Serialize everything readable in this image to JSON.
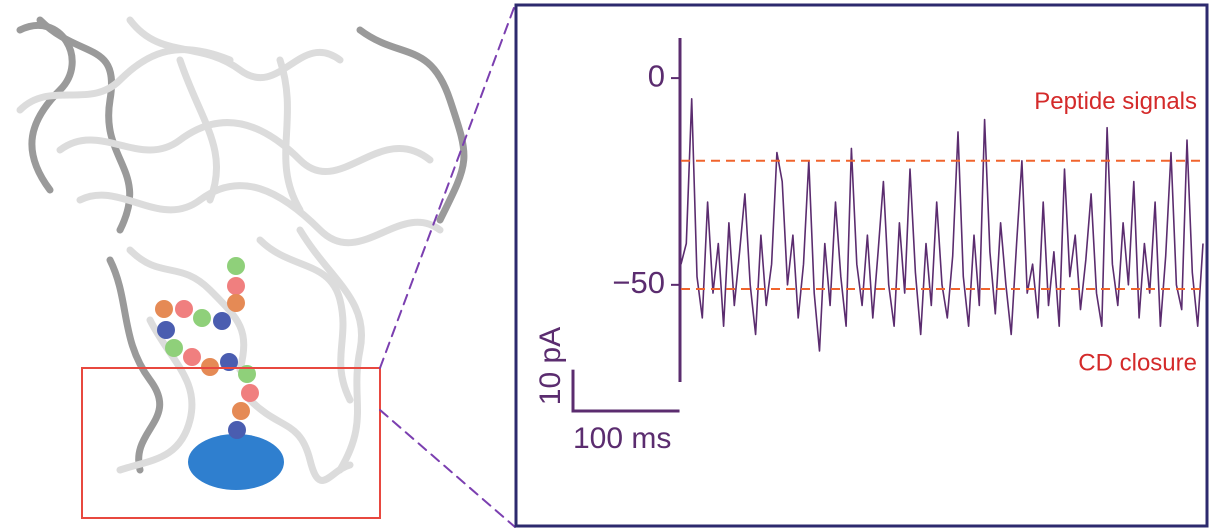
{
  "chart_data": {
    "type": "line",
    "color": "#5b2c6f",
    "x": [
      0,
      5,
      10,
      15,
      20,
      25,
      30,
      35,
      40,
      45,
      50,
      55,
      60,
      65,
      70,
      75,
      80,
      85,
      90,
      95,
      100,
      105,
      110,
      115,
      120,
      125,
      130,
      135,
      140,
      145,
      150,
      155,
      160,
      165,
      170,
      175,
      180,
      185,
      190,
      195,
      200,
      205,
      210,
      215,
      220,
      225,
      230,
      235,
      240,
      245,
      250,
      255,
      260,
      265,
      270,
      275,
      280,
      285,
      290,
      295,
      300,
      305,
      310,
      315,
      320,
      325,
      330,
      335,
      340,
      345,
      350,
      355,
      360,
      365,
      370,
      375,
      380,
      385,
      390,
      395,
      400,
      405,
      410,
      415,
      420,
      425,
      430,
      435,
      440,
      445,
      450,
      455,
      460,
      465,
      470,
      475,
      480,
      485,
      490
    ],
    "values": [
      -45,
      -40,
      -5,
      -48,
      -58,
      -30,
      -52,
      -40,
      -60,
      -35,
      -55,
      -42,
      -28,
      -50,
      -62,
      -38,
      -55,
      -45,
      -18,
      -25,
      -50,
      -38,
      -58,
      -45,
      -20,
      -52,
      -66,
      -40,
      -55,
      -30,
      -48,
      -60,
      -17,
      -45,
      -55,
      -38,
      -58,
      -42,
      -25,
      -50,
      -60,
      -35,
      -52,
      -22,
      -47,
      -62,
      -40,
      -55,
      -30,
      -50,
      -58,
      -43,
      -13,
      -48,
      -60,
      -38,
      -55,
      -10,
      -42,
      -57,
      -35,
      -50,
      -62,
      -40,
      -20,
      -52,
      -45,
      -58,
      -30,
      -55,
      -42,
      -60,
      -22,
      -48,
      -38,
      -56,
      -44,
      -28,
      -52,
      -60,
      -12,
      -45,
      -55,
      -35,
      -50,
      -25,
      -58,
      -40,
      -52,
      -30,
      -60,
      -43,
      -18,
      -50,
      -56,
      -15,
      -47,
      -60,
      -40
    ],
    "xlim": [
      0,
      490
    ],
    "ylim": [
      -73.5,
      9.7
    ],
    "yticks": [
      0,
      {
        "value": -50,
        "label": "−50"
      }
    ],
    "reference_lines": [
      {
        "value": -20,
        "color": "#f0642d",
        "label": "Peptide signals"
      },
      {
        "value": -51,
        "color": "#f0642d",
        "label": "CD closure"
      }
    ],
    "annotation_color": "#d42a2a",
    "scale_bars": {
      "y": {
        "value": 10,
        "label": "10 pA"
      },
      "x": {
        "value": 100,
        "label": "100 ms"
      }
    }
  }
}
